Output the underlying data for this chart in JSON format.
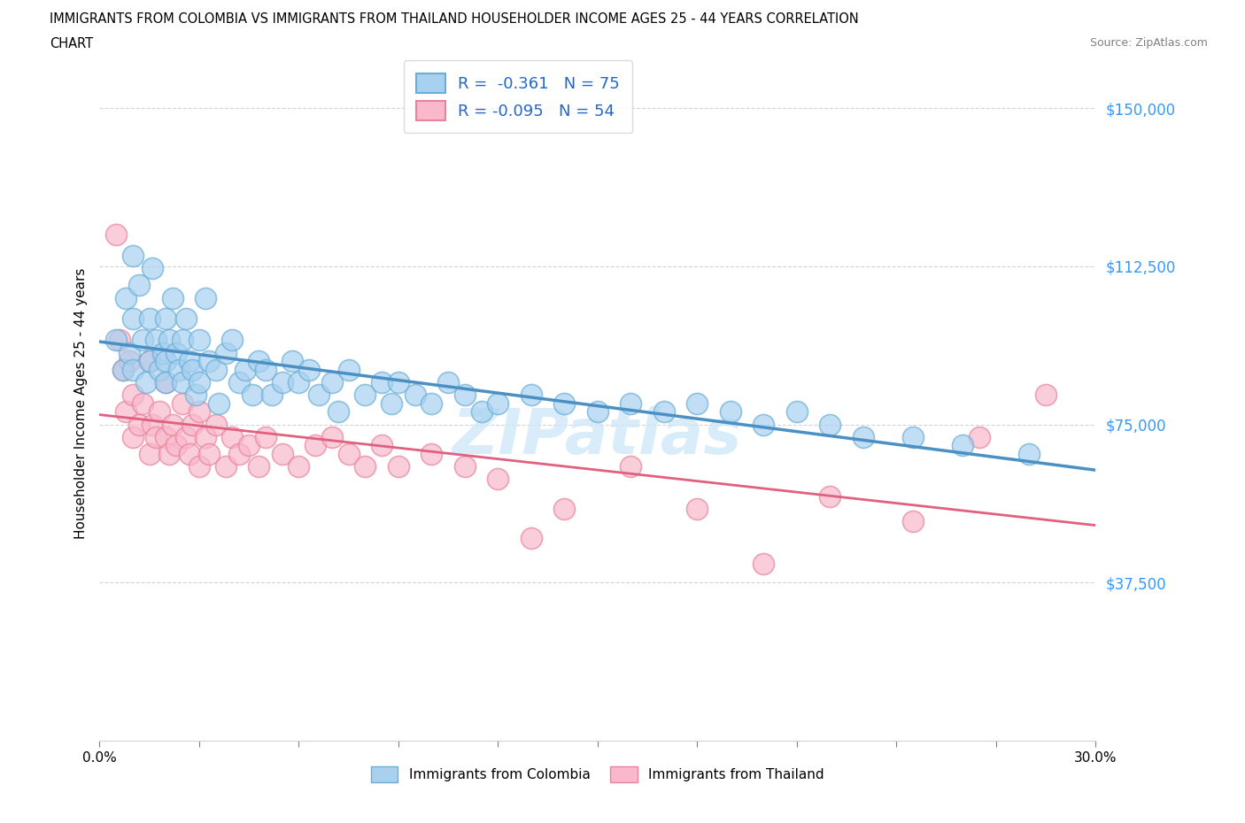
{
  "title_line1": "IMMIGRANTS FROM COLOMBIA VS IMMIGRANTS FROM THAILAND HOUSEHOLDER INCOME AGES 25 - 44 YEARS CORRELATION",
  "title_line2": "CHART",
  "source_text": "Source: ZipAtlas.com",
  "ylabel": "Householder Income Ages 25 - 44 years",
  "xlim": [
    0.0,
    0.3
  ],
  "ylim": [
    0,
    160000
  ],
  "yticks": [
    0,
    37500,
    75000,
    112500,
    150000
  ],
  "ytick_labels": [
    "",
    "$37,500",
    "$75,000",
    "$112,500",
    "$150,000"
  ],
  "xticks": [
    0.0,
    0.03,
    0.06,
    0.09,
    0.12,
    0.15,
    0.18,
    0.21,
    0.24,
    0.27,
    0.3
  ],
  "colombia_color": "#a8d1f0",
  "thailand_color": "#f9b8cc",
  "colombia_edge_color": "#6aaed6",
  "thailand_edge_color": "#e8849a",
  "colombia_line_color": "#4a90c4",
  "thailand_line_color": "#e06080",
  "colombia_R": -0.361,
  "colombia_N": 75,
  "thailand_R": -0.095,
  "thailand_N": 54,
  "watermark": "ZIPatlas",
  "legend_label_colombia": "Immigrants from Colombia",
  "legend_label_thailand": "Immigrants from Thailand",
  "colombia_x": [
    0.005,
    0.007,
    0.008,
    0.009,
    0.01,
    0.01,
    0.01,
    0.012,
    0.013,
    0.014,
    0.015,
    0.015,
    0.016,
    0.017,
    0.018,
    0.019,
    0.02,
    0.02,
    0.02,
    0.021,
    0.022,
    0.023,
    0.024,
    0.025,
    0.025,
    0.026,
    0.027,
    0.028,
    0.029,
    0.03,
    0.03,
    0.032,
    0.033,
    0.035,
    0.036,
    0.038,
    0.04,
    0.042,
    0.044,
    0.046,
    0.048,
    0.05,
    0.052,
    0.055,
    0.058,
    0.06,
    0.063,
    0.066,
    0.07,
    0.072,
    0.075,
    0.08,
    0.085,
    0.088,
    0.09,
    0.095,
    0.1,
    0.105,
    0.11,
    0.115,
    0.12,
    0.13,
    0.14,
    0.15,
    0.16,
    0.17,
    0.18,
    0.19,
    0.2,
    0.21,
    0.22,
    0.23,
    0.245,
    0.26,
    0.28
  ],
  "colombia_y": [
    95000,
    88000,
    105000,
    92000,
    115000,
    100000,
    88000,
    108000,
    95000,
    85000,
    100000,
    90000,
    112000,
    95000,
    88000,
    92000,
    100000,
    90000,
    85000,
    95000,
    105000,
    92000,
    88000,
    95000,
    85000,
    100000,
    90000,
    88000,
    82000,
    95000,
    85000,
    105000,
    90000,
    88000,
    80000,
    92000,
    95000,
    85000,
    88000,
    82000,
    90000,
    88000,
    82000,
    85000,
    90000,
    85000,
    88000,
    82000,
    85000,
    78000,
    88000,
    82000,
    85000,
    80000,
    85000,
    82000,
    80000,
    85000,
    82000,
    78000,
    80000,
    82000,
    80000,
    78000,
    80000,
    78000,
    80000,
    78000,
    75000,
    78000,
    75000,
    72000,
    72000,
    70000,
    68000
  ],
  "thailand_x": [
    0.005,
    0.006,
    0.007,
    0.008,
    0.009,
    0.01,
    0.01,
    0.012,
    0.013,
    0.015,
    0.015,
    0.016,
    0.017,
    0.018,
    0.02,
    0.02,
    0.021,
    0.022,
    0.023,
    0.025,
    0.026,
    0.027,
    0.028,
    0.03,
    0.03,
    0.032,
    0.033,
    0.035,
    0.038,
    0.04,
    0.042,
    0.045,
    0.048,
    0.05,
    0.055,
    0.06,
    0.065,
    0.07,
    0.075,
    0.08,
    0.085,
    0.09,
    0.1,
    0.11,
    0.12,
    0.13,
    0.14,
    0.16,
    0.18,
    0.2,
    0.22,
    0.245,
    0.265,
    0.285
  ],
  "thailand_y": [
    120000,
    95000,
    88000,
    78000,
    90000,
    82000,
    72000,
    75000,
    80000,
    90000,
    68000,
    75000,
    72000,
    78000,
    85000,
    72000,
    68000,
    75000,
    70000,
    80000,
    72000,
    68000,
    75000,
    78000,
    65000,
    72000,
    68000,
    75000,
    65000,
    72000,
    68000,
    70000,
    65000,
    72000,
    68000,
    65000,
    70000,
    72000,
    68000,
    65000,
    70000,
    65000,
    68000,
    65000,
    62000,
    48000,
    55000,
    65000,
    55000,
    42000,
    58000,
    52000,
    72000,
    82000
  ]
}
